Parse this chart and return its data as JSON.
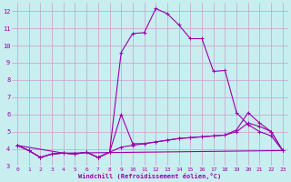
{
  "bg_color": "#c8eef0",
  "grid_color": "#c8a0c8",
  "line_color": "#9900aa",
  "xlabel": "Windchill (Refroidissement éolien,°C)",
  "xlim": [
    -0.5,
    23.5
  ],
  "ylim": [
    3,
    12.5
  ],
  "yticks": [
    3,
    4,
    5,
    6,
    7,
    8,
    9,
    10,
    11,
    12
  ],
  "xticks": [
    0,
    1,
    2,
    3,
    4,
    5,
    6,
    7,
    8,
    9,
    10,
    11,
    12,
    13,
    14,
    15,
    16,
    17,
    18,
    19,
    20,
    21,
    22,
    23
  ],
  "series1_x": [
    0,
    1,
    2,
    3,
    4,
    5,
    6,
    7,
    8,
    9,
    10,
    11,
    12,
    13,
    14,
    15,
    16,
    17,
    18,
    19,
    20,
    21,
    22,
    23
  ],
  "series1_y": [
    4.2,
    3.9,
    3.5,
    3.7,
    3.75,
    3.7,
    3.8,
    3.5,
    3.8,
    9.6,
    10.7,
    10.75,
    12.15,
    11.85,
    11.2,
    10.4,
    10.4,
    8.5,
    8.55,
    6.1,
    5.4,
    5.0,
    4.75,
    3.9
  ],
  "series2_x": [
    0,
    1,
    2,
    3,
    4,
    5,
    6,
    7,
    8,
    9,
    10,
    11,
    12,
    13,
    14,
    15,
    16,
    17,
    18,
    19,
    20,
    21,
    22,
    23
  ],
  "series2_y": [
    4.2,
    3.9,
    3.5,
    3.7,
    3.75,
    3.7,
    3.8,
    3.5,
    3.8,
    6.0,
    4.3,
    4.3,
    4.4,
    4.5,
    4.6,
    4.65,
    4.7,
    4.75,
    4.8,
    5.0,
    5.5,
    5.3,
    5.0,
    3.9
  ],
  "series3_x": [
    0,
    1,
    2,
    3,
    4,
    5,
    6,
    7,
    8,
    9,
    10,
    11,
    12,
    13,
    14,
    15,
    16,
    17,
    18,
    19,
    20,
    21,
    22,
    23
  ],
  "series3_y": [
    4.2,
    3.9,
    3.5,
    3.7,
    3.75,
    3.7,
    3.8,
    3.5,
    3.8,
    4.1,
    4.2,
    4.3,
    4.4,
    4.5,
    4.6,
    4.65,
    4.7,
    4.75,
    4.8,
    5.1,
    6.1,
    5.5,
    5.0,
    3.9
  ],
  "series4_x": [
    0,
    4,
    23
  ],
  "series4_y": [
    4.2,
    3.75,
    3.9
  ],
  "marker": "+",
  "marker_size": 2.5,
  "lw": 0.8
}
